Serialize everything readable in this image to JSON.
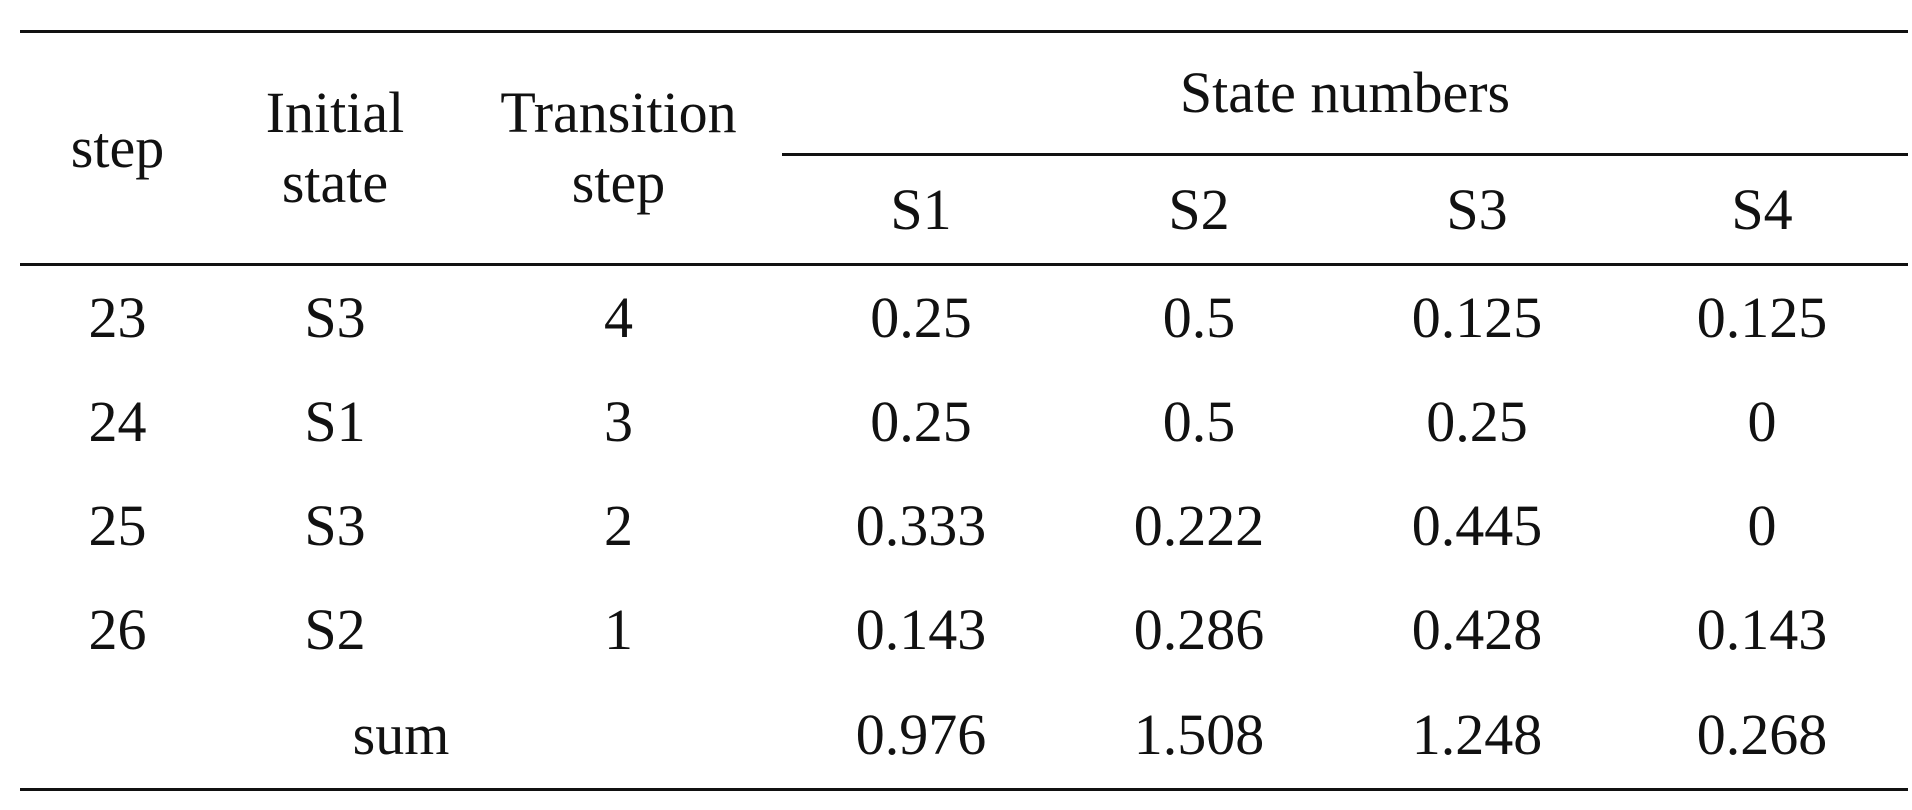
{
  "table": {
    "headers": {
      "step": "step",
      "initial_state": "Initial state",
      "transition_step": "Transition step",
      "state_numbers": "State numbers",
      "states": [
        "S1",
        "S2",
        "S3",
        "S4"
      ]
    },
    "rows": [
      {
        "step": "23",
        "initial_state": "S3",
        "transition_step": "4",
        "values": [
          "0.25",
          "0.5",
          "0.125",
          "0.125"
        ]
      },
      {
        "step": "24",
        "initial_state": "S1",
        "transition_step": "3",
        "values": [
          "0.25",
          "0.5",
          "0.25",
          "0"
        ]
      },
      {
        "step": "25",
        "initial_state": "S3",
        "transition_step": "2",
        "values": [
          "0.333",
          "0.222",
          "0.445",
          "0"
        ]
      },
      {
        "step": "26",
        "initial_state": "S2",
        "transition_step": "1",
        "values": [
          "0.143",
          "0.286",
          "0.428",
          "0.143"
        ]
      }
    ],
    "sum": {
      "label": "sum",
      "values": [
        "0.976",
        "1.508",
        "1.248",
        "0.268"
      ]
    }
  }
}
